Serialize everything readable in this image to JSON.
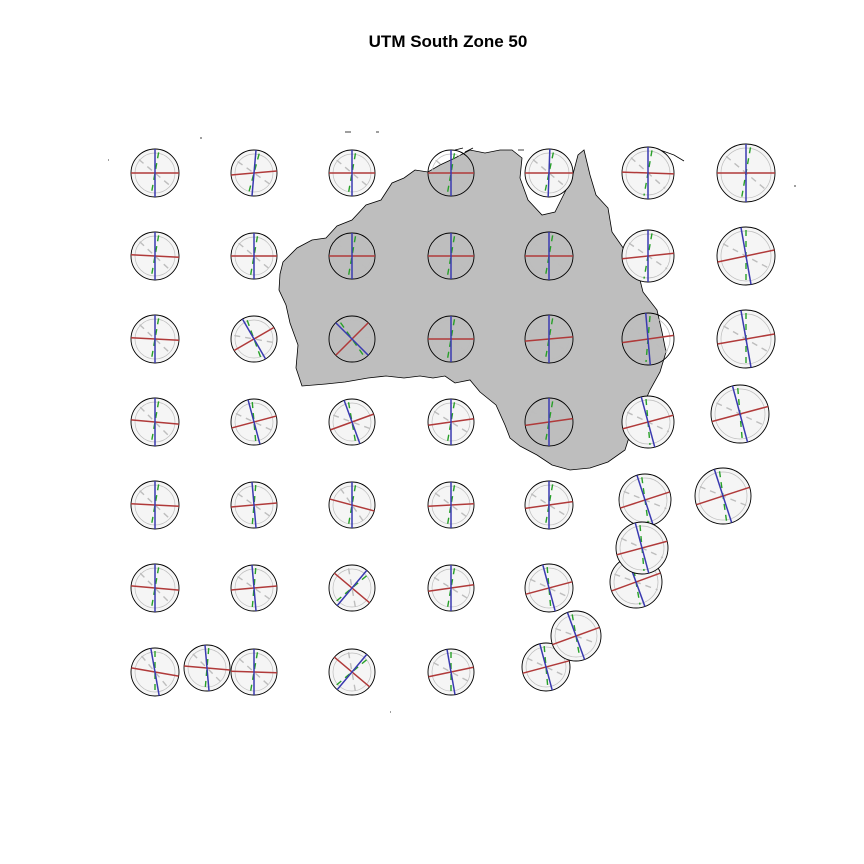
{
  "title": "UTM South Zone 50",
  "colors": {
    "background": "#ffffff",
    "land_fill": "#bebebe",
    "land_stroke": "#000000",
    "circle_fill": "#f5f5f5",
    "circle_stroke": "#000000",
    "red": "#b03a3a",
    "blue": "#3a3ab0",
    "green": "#28a028",
    "gray": "#bdbdbd"
  },
  "indicatrix": {
    "description_keys": [
      "red",
      "blue",
      "green",
      "gray"
    ],
    "grid_cols": 7,
    "grid_rows": 7
  }
}
